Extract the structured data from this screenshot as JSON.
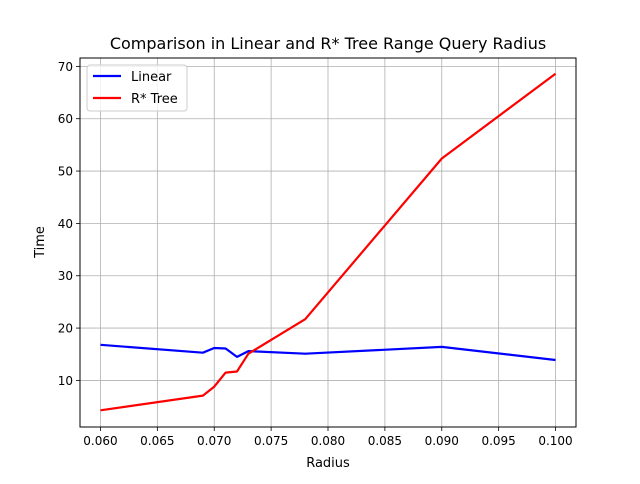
{
  "chart_data": {
    "type": "line",
    "title": "Comparison in Linear and R* Tree Range Query Radius",
    "xlabel": "Radius",
    "ylabel": "Time",
    "xlim": [
      0.0582,
      0.1018
    ],
    "ylim": [
      1.1,
      71.6
    ],
    "xticks": [
      0.06,
      0.065,
      0.07,
      0.075,
      0.08,
      0.085,
      0.09,
      0.095,
      0.1
    ],
    "xtick_labels": [
      "0.060",
      "0.065",
      "0.070",
      "0.075",
      "0.080",
      "0.085",
      "0.090",
      "0.095",
      "0.100"
    ],
    "yticks": [
      10,
      20,
      30,
      40,
      50,
      60,
      70
    ],
    "ytick_labels": [
      "10",
      "20",
      "30",
      "40",
      "50",
      "60",
      "70"
    ],
    "grid": true,
    "legend_position": "top-left",
    "series": [
      {
        "name": "Linear",
        "color": "#0000ff",
        "x": [
          0.06,
          0.069,
          0.07,
          0.071,
          0.072,
          0.073,
          0.078,
          0.09,
          0.1
        ],
        "y": [
          16.8,
          15.3,
          16.2,
          16.1,
          14.5,
          15.6,
          15.1,
          16.4,
          13.9
        ]
      },
      {
        "name": "R* Tree",
        "color": "#ff0000",
        "x": [
          0.06,
          0.069,
          0.07,
          0.071,
          0.072,
          0.073,
          0.078,
          0.09,
          0.1
        ],
        "y": [
          4.3,
          7.1,
          8.8,
          11.5,
          11.7,
          15.1,
          21.7,
          52.4,
          68.6
        ]
      }
    ]
  }
}
